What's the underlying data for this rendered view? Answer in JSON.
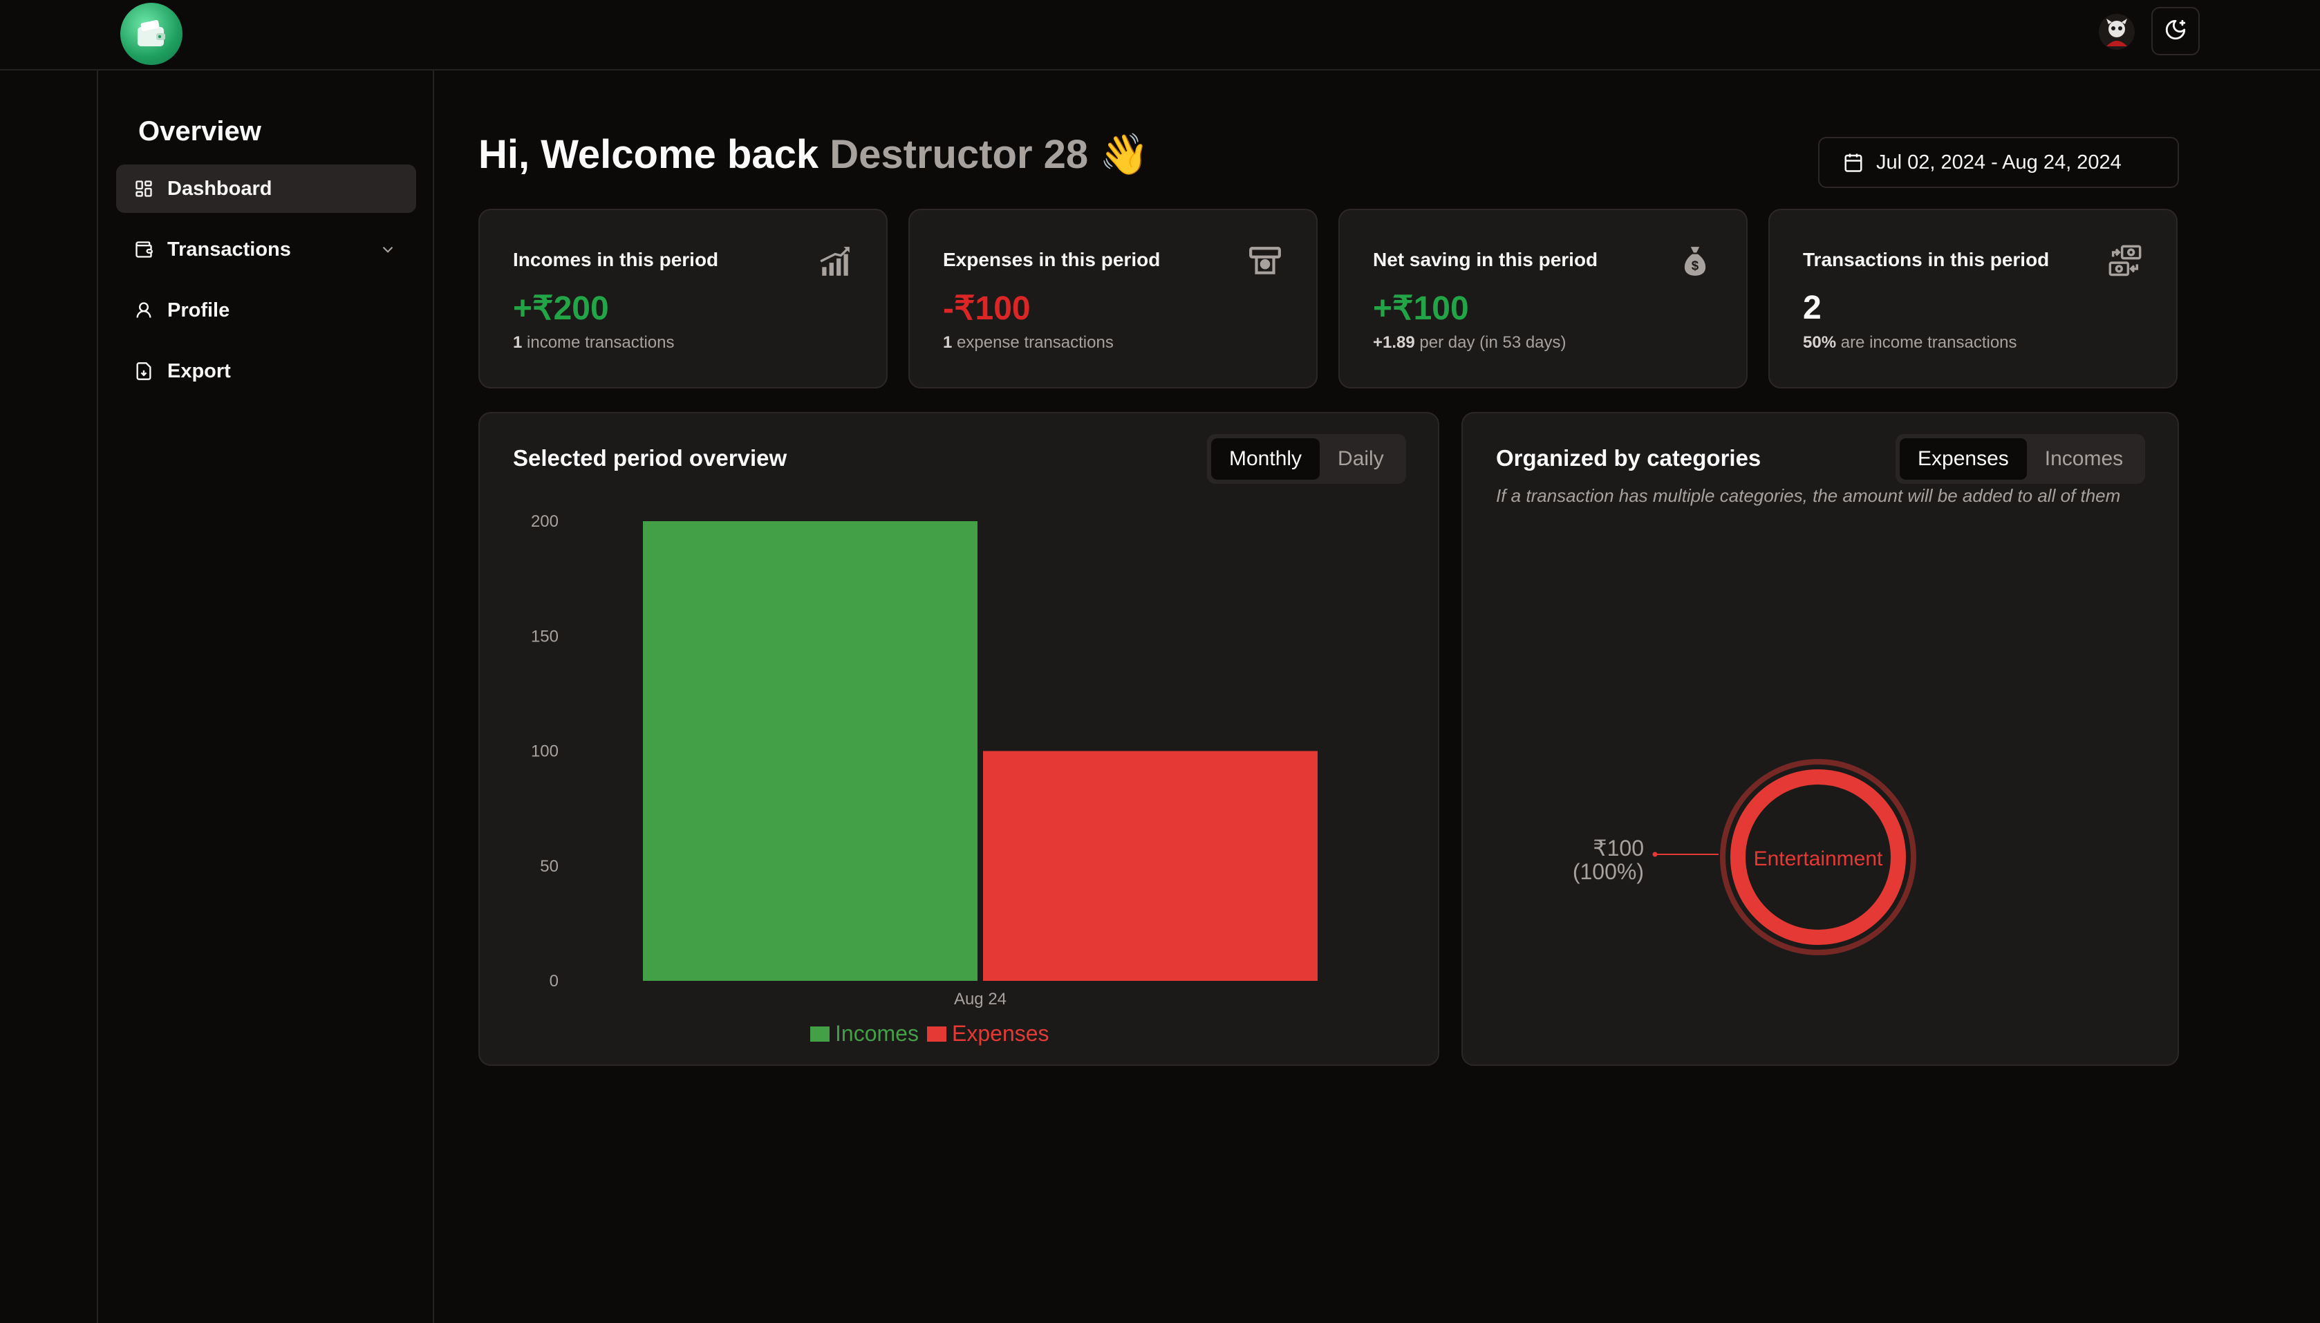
{
  "sidebar": {
    "title": "Overview",
    "items": [
      {
        "label": "Dashboard"
      },
      {
        "label": "Transactions"
      },
      {
        "label": "Profile"
      },
      {
        "label": "Export"
      }
    ]
  },
  "header": {
    "greeting": "Hi, Welcome back",
    "username": "Destructor 28",
    "emoji": "👋",
    "date_range": "Jul 02, 2024 - Aug 24, 2024"
  },
  "cards": [
    {
      "label": "Incomes in this period",
      "value": "+₹200",
      "value_color": "#22a447",
      "sub_bold": "1",
      "sub_text": "income transactions",
      "icon": "chart-up-icon"
    },
    {
      "label": "Expenses in this period",
      "value": "-₹100",
      "value_color": "#dc2626",
      "sub_bold": "1",
      "sub_text": "expense transactions",
      "icon": "atm-icon"
    },
    {
      "label": "Net saving in this period",
      "value": "+₹100",
      "value_color": "#22a447",
      "sub_bold": "+1.89",
      "sub_text": "per day (in 53 days)",
      "icon": "money-bag-icon"
    },
    {
      "label": "Transactions in this period",
      "value": "2",
      "value_color": "#fafafa",
      "sub_bold": "50%",
      "sub_text": "are income transactions",
      "icon": "cash-exchange-icon"
    }
  ],
  "overview_panel": {
    "title": "Selected period overview",
    "toggle": [
      "Monthly",
      "Daily"
    ],
    "selected": "Monthly"
  },
  "categories_panel": {
    "title": "Organized by categories",
    "toggle": [
      "Expenses",
      "Incomes"
    ],
    "selected": "Expenses",
    "note": "If a transaction has multiple categories, the amount will be added to all of them"
  },
  "chart_data": [
    {
      "type": "bar",
      "categories": [
        "Aug 24"
      ],
      "series": [
        {
          "name": "Incomes",
          "values": [
            200
          ],
          "color": "#43a047"
        },
        {
          "name": "Expenses",
          "values": [
            100
          ],
          "color": "#e53935"
        }
      ],
      "ylim": [
        0,
        200
      ],
      "yticks": [
        0,
        50,
        100,
        150,
        200
      ],
      "legend": "bottom"
    },
    {
      "type": "pie",
      "slices": [
        {
          "label": "Entertainment",
          "value": 100,
          "value_label": "₹100",
          "percent_label": "(100%)",
          "color": "#e53935"
        }
      ]
    }
  ]
}
